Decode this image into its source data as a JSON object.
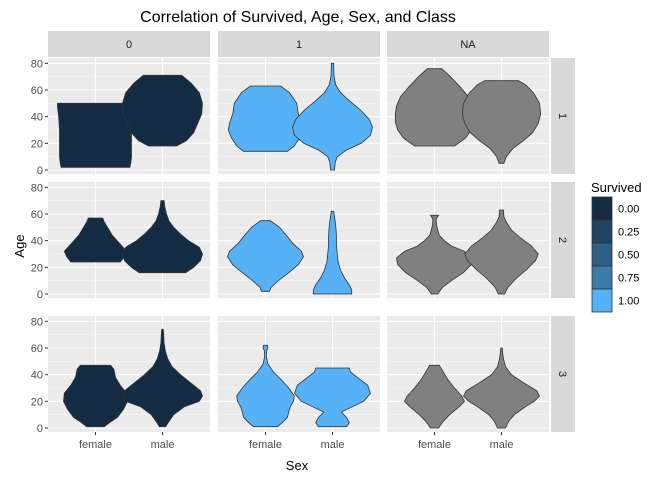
{
  "chart_data": {
    "type": "violin",
    "title": "Correlation of Survived, Age, Sex, and Class",
    "xlabel": "Sex",
    "ylabel": "Age",
    "categories": [
      "female",
      "male"
    ],
    "ylim": [
      -3,
      84
    ],
    "y_ticks": [
      0,
      20,
      40,
      60,
      80
    ],
    "col_facets": [
      "0",
      "1",
      "NA"
    ],
    "row_facets": [
      "1",
      "2",
      "3"
    ],
    "legend": {
      "title": "Survived",
      "position": "right",
      "entries": [
        {
          "label": "0.00",
          "color": "#132B43"
        },
        {
          "label": "0.25",
          "color": "#204462"
        },
        {
          "label": "0.50",
          "color": "#2E5F84"
        },
        {
          "label": "0.75",
          "color": "#3D7BA8"
        },
        {
          "label": "1.00",
          "color": "#56B1F7"
        }
      ]
    },
    "fill_colors": {
      "0": "#132B43",
      "1": "#56B1F7",
      "NA": "#808080"
    },
    "violins": [
      {
        "row": "1",
        "col": "0",
        "sex": "female",
        "profile": [
          [
            2,
            0.86
          ],
          [
            5,
            0.88
          ],
          [
            10,
            0.9
          ],
          [
            20,
            0.9
          ],
          [
            30,
            0.9
          ],
          [
            40,
            0.92
          ],
          [
            47,
            0.95
          ],
          [
            50,
            0.95
          ]
        ]
      },
      {
        "row": "1",
        "col": "0",
        "sex": "male",
        "profile": [
          [
            18,
            0.35
          ],
          [
            22,
            0.6
          ],
          [
            28,
            0.78
          ],
          [
            35,
            0.88
          ],
          [
            42,
            0.98
          ],
          [
            50,
            1.0
          ],
          [
            58,
            0.92
          ],
          [
            65,
            0.72
          ],
          [
            71,
            0.48
          ]
        ]
      },
      {
        "row": "1",
        "col": "1",
        "sex": "female",
        "profile": [
          [
            14,
            0.55
          ],
          [
            18,
            0.72
          ],
          [
            24,
            0.85
          ],
          [
            30,
            0.93
          ],
          [
            35,
            0.9
          ],
          [
            42,
            0.82
          ],
          [
            50,
            0.78
          ],
          [
            58,
            0.6
          ],
          [
            63,
            0.38
          ]
        ]
      },
      {
        "row": "1",
        "col": "1",
        "sex": "male",
        "profile": [
          [
            0,
            0.05
          ],
          [
            3,
            0.06
          ],
          [
            6,
            0.07
          ],
          [
            10,
            0.12
          ],
          [
            15,
            0.35
          ],
          [
            20,
            0.72
          ],
          [
            26,
            0.95
          ],
          [
            32,
            1.0
          ],
          [
            38,
            0.92
          ],
          [
            45,
            0.7
          ],
          [
            52,
            0.42
          ],
          [
            58,
            0.2
          ],
          [
            64,
            0.08
          ],
          [
            70,
            0.04
          ],
          [
            76,
            0.03
          ],
          [
            80,
            0.03
          ]
        ]
      },
      {
        "row": "1",
        "col": "NA",
        "sex": "female",
        "profile": [
          [
            18,
            0.5
          ],
          [
            24,
            0.78
          ],
          [
            30,
            0.92
          ],
          [
            36,
            0.98
          ],
          [
            42,
            0.98
          ],
          [
            48,
            0.95
          ],
          [
            55,
            0.85
          ],
          [
            62,
            0.65
          ],
          [
            70,
            0.4
          ],
          [
            76,
            0.18
          ]
        ]
      },
      {
        "row": "1",
        "col": "NA",
        "sex": "male",
        "profile": [
          [
            5,
            0.06
          ],
          [
            10,
            0.12
          ],
          [
            16,
            0.28
          ],
          [
            22,
            0.55
          ],
          [
            28,
            0.78
          ],
          [
            35,
            0.92
          ],
          [
            42,
            0.98
          ],
          [
            50,
            0.95
          ],
          [
            58,
            0.8
          ],
          [
            64,
            0.6
          ],
          [
            67,
            0.42
          ]
        ]
      },
      {
        "row": "2",
        "col": "0",
        "sex": "female",
        "profile": [
          [
            24,
            0.62
          ],
          [
            28,
            0.72
          ],
          [
            32,
            0.78
          ],
          [
            38,
            0.6
          ],
          [
            44,
            0.42
          ],
          [
            50,
            0.3
          ],
          [
            54,
            0.22
          ],
          [
            57,
            0.18
          ]
        ]
      },
      {
        "row": "2",
        "col": "0",
        "sex": "male",
        "profile": [
          [
            16,
            0.58
          ],
          [
            20,
            0.78
          ],
          [
            25,
            0.95
          ],
          [
            30,
            1.0
          ],
          [
            35,
            0.92
          ],
          [
            40,
            0.65
          ],
          [
            45,
            0.45
          ],
          [
            50,
            0.28
          ],
          [
            55,
            0.16
          ],
          [
            60,
            0.1
          ],
          [
            65,
            0.06
          ],
          [
            70,
            0.04
          ]
        ]
      },
      {
        "row": "2",
        "col": "1",
        "sex": "female",
        "profile": [
          [
            2,
            0.1
          ],
          [
            5,
            0.14
          ],
          [
            10,
            0.32
          ],
          [
            16,
            0.58
          ],
          [
            22,
            0.82
          ],
          [
            28,
            0.95
          ],
          [
            32,
            0.9
          ],
          [
            38,
            0.68
          ],
          [
            44,
            0.52
          ],
          [
            50,
            0.35
          ],
          [
            55,
            0.12
          ]
        ]
      },
      {
        "row": "2",
        "col": "1",
        "sex": "male",
        "profile": [
          [
            0,
            0.48
          ],
          [
            3,
            0.48
          ],
          [
            7,
            0.42
          ],
          [
            12,
            0.3
          ],
          [
            18,
            0.2
          ],
          [
            24,
            0.14
          ],
          [
            30,
            0.12
          ],
          [
            36,
            0.1
          ],
          [
            42,
            0.1
          ],
          [
            48,
            0.09
          ],
          [
            54,
            0.07
          ],
          [
            58,
            0.05
          ],
          [
            62,
            0.03
          ]
        ]
      },
      {
        "row": "2",
        "col": "NA",
        "sex": "female",
        "profile": [
          [
            0,
            0.08
          ],
          [
            5,
            0.2
          ],
          [
            10,
            0.42
          ],
          [
            16,
            0.72
          ],
          [
            22,
            0.92
          ],
          [
            27,
            0.95
          ],
          [
            32,
            0.75
          ],
          [
            36,
            0.42
          ],
          [
            40,
            0.25
          ],
          [
            44,
            0.12
          ],
          [
            48,
            0.08
          ],
          [
            52,
            0.05
          ],
          [
            56,
            0.04
          ],
          [
            59,
            0.1
          ]
        ]
      },
      {
        "row": "2",
        "col": "NA",
        "sex": "male",
        "profile": [
          [
            0,
            0.08
          ],
          [
            5,
            0.16
          ],
          [
            12,
            0.38
          ],
          [
            18,
            0.62
          ],
          [
            25,
            0.85
          ],
          [
            30,
            0.92
          ],
          [
            36,
            0.75
          ],
          [
            42,
            0.48
          ],
          [
            48,
            0.25
          ],
          [
            54,
            0.12
          ],
          [
            58,
            0.06
          ],
          [
            63,
            0.05
          ]
        ]
      },
      {
        "row": "3",
        "col": "0",
        "sex": "female",
        "profile": [
          [
            1,
            0.22
          ],
          [
            4,
            0.35
          ],
          [
            8,
            0.55
          ],
          [
            14,
            0.7
          ],
          [
            20,
            0.8
          ],
          [
            26,
            0.78
          ],
          [
            32,
            0.62
          ],
          [
            38,
            0.5
          ],
          [
            44,
            0.46
          ],
          [
            47,
            0.38
          ]
        ]
      },
      {
        "row": "3",
        "col": "0",
        "sex": "male",
        "profile": [
          [
            1,
            0.08
          ],
          [
            4,
            0.14
          ],
          [
            10,
            0.28
          ],
          [
            16,
            0.55
          ],
          [
            20,
            0.92
          ],
          [
            24,
            1.0
          ],
          [
            28,
            0.95
          ],
          [
            34,
            0.7
          ],
          [
            40,
            0.45
          ],
          [
            46,
            0.24
          ],
          [
            52,
            0.13
          ],
          [
            58,
            0.07
          ],
          [
            64,
            0.04
          ],
          [
            70,
            0.03
          ],
          [
            74,
            0.02
          ]
        ]
      },
      {
        "row": "3",
        "col": "1",
        "sex": "female",
        "profile": [
          [
            1,
            0.3
          ],
          [
            4,
            0.42
          ],
          [
            8,
            0.55
          ],
          [
            12,
            0.58
          ],
          [
            16,
            0.62
          ],
          [
            20,
            0.7
          ],
          [
            24,
            0.72
          ],
          [
            30,
            0.58
          ],
          [
            36,
            0.4
          ],
          [
            42,
            0.2
          ],
          [
            48,
            0.06
          ],
          [
            54,
            0.02
          ],
          [
            58,
            0.03
          ],
          [
            60,
            0.06
          ],
          [
            62,
            0.05
          ]
        ]
      },
      {
        "row": "3",
        "col": "1",
        "sex": "male",
        "profile": [
          [
            1,
            0.35
          ],
          [
            4,
            0.42
          ],
          [
            8,
            0.35
          ],
          [
            12,
            0.22
          ],
          [
            16,
            0.5
          ],
          [
            20,
            0.78
          ],
          [
            26,
            0.95
          ],
          [
            32,
            0.88
          ],
          [
            38,
            0.62
          ],
          [
            42,
            0.45
          ],
          [
            45,
            0.42
          ]
        ]
      },
      {
        "row": "3",
        "col": "NA",
        "sex": "female",
        "profile": [
          [
            0,
            0.1
          ],
          [
            5,
            0.22
          ],
          [
            10,
            0.38
          ],
          [
            16,
            0.62
          ],
          [
            20,
            0.75
          ],
          [
            24,
            0.68
          ],
          [
            30,
            0.5
          ],
          [
            36,
            0.34
          ],
          [
            40,
            0.26
          ],
          [
            44,
            0.18
          ],
          [
            47,
            0.12
          ]
        ]
      },
      {
        "row": "3",
        "col": "NA",
        "sex": "male",
        "profile": [
          [
            0,
            0.1
          ],
          [
            5,
            0.18
          ],
          [
            10,
            0.32
          ],
          [
            16,
            0.6
          ],
          [
            20,
            0.82
          ],
          [
            24,
            0.95
          ],
          [
            28,
            0.88
          ],
          [
            34,
            0.55
          ],
          [
            40,
            0.25
          ],
          [
            46,
            0.1
          ],
          [
            52,
            0.05
          ],
          [
            56,
            0.03
          ],
          [
            60,
            0.02
          ]
        ]
      }
    ]
  }
}
